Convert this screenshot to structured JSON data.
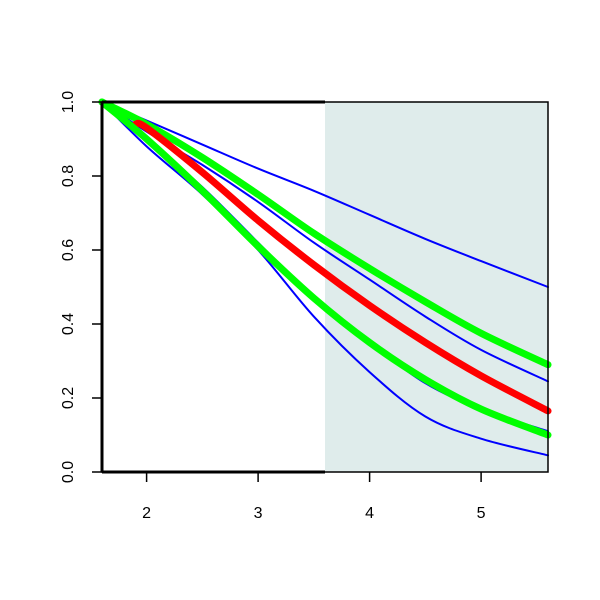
{
  "chart_data": {
    "type": "line",
    "title": "",
    "xlabel": "",
    "ylabel": "",
    "xlim": [
      1.6,
      5.6
    ],
    "ylim": [
      0.0,
      1.0
    ],
    "x_ticks": [
      2,
      3,
      4,
      5
    ],
    "x_tick_labels": [
      "2",
      "3",
      "4",
      "5"
    ],
    "y_ticks": [
      0.0,
      0.2,
      0.4,
      0.6,
      0.8,
      1.0
    ],
    "y_tick_labels": [
      "0.0",
      "0.2",
      "0.4",
      "0.6",
      "0.8",
      "1.0"
    ],
    "grid": false,
    "shaded_region": {
      "x": [
        3.6,
        5.6
      ],
      "color": "#dfeceb"
    },
    "series": [
      {
        "color": "#0000ff",
        "weight": "thin",
        "x": [
          1.6,
          2.0,
          2.5,
          3.0,
          3.5,
          4.0,
          4.5,
          5.0,
          5.6
        ],
        "y": [
          1.0,
          0.95,
          0.885,
          0.82,
          0.76,
          0.695,
          0.63,
          0.57,
          0.5
        ]
      },
      {
        "color": "#0000ff",
        "weight": "thin",
        "x": [
          1.6,
          2.0,
          2.5,
          3.0,
          3.5,
          4.0,
          4.5,
          5.0,
          5.6
        ],
        "y": [
          1.0,
          0.92,
          0.83,
          0.73,
          0.62,
          0.52,
          0.42,
          0.33,
          0.245
        ]
      },
      {
        "color": "#0000ff",
        "weight": "thin",
        "x": [
          1.6,
          2.0,
          2.5,
          3.0,
          3.5,
          4.0,
          4.5,
          5.0,
          5.6
        ],
        "y": [
          1.0,
          0.9,
          0.77,
          0.62,
          0.47,
          0.35,
          0.24,
          0.17,
          0.11
        ]
      },
      {
        "color": "#0000ff",
        "weight": "thin",
        "x": [
          1.6,
          2.0,
          2.5,
          3.0,
          3.5,
          4.0,
          4.5,
          5.0,
          5.6
        ],
        "y": [
          1.0,
          0.88,
          0.75,
          0.6,
          0.42,
          0.27,
          0.15,
          0.09,
          0.045
        ]
      },
      {
        "color": "#00ff00",
        "weight": "thick",
        "x": [
          1.6,
          2.0,
          2.5,
          3.0,
          3.5,
          4.0,
          4.5,
          5.0,
          5.6
        ],
        "y": [
          1.0,
          0.94,
          0.85,
          0.75,
          0.645,
          0.55,
          0.46,
          0.375,
          0.29
        ]
      },
      {
        "color": "#ff0000",
        "weight": "thick",
        "x": [
          1.9,
          2.0,
          2.5,
          3.0,
          3.5,
          4.0,
          4.5,
          5.0,
          5.6
        ],
        "y": [
          0.94,
          0.93,
          0.81,
          0.68,
          0.56,
          0.45,
          0.35,
          0.26,
          0.165
        ]
      },
      {
        "color": "#00ff00",
        "weight": "thick",
        "x": [
          1.6,
          2.0,
          2.5,
          3.0,
          3.5,
          4.0,
          4.5,
          5.0,
          5.6
        ],
        "y": [
          1.0,
          0.9,
          0.76,
          0.61,
          0.47,
          0.35,
          0.25,
          0.17,
          0.1
        ]
      }
    ]
  }
}
